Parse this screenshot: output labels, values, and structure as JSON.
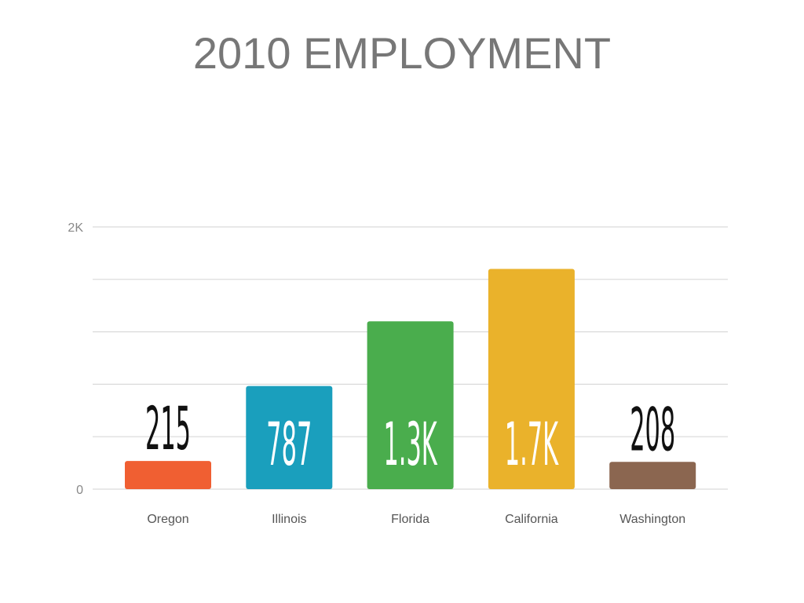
{
  "chart_data": {
    "type": "bar",
    "title": "2010 EMPLOYMENT",
    "categories": [
      "Oregon",
      "Illinois",
      "Florida",
      "California",
      "Washington"
    ],
    "values": [
      215,
      787,
      1280,
      1680,
      208
    ],
    "value_labels": [
      "215",
      "787",
      "1.3K",
      "1.7K",
      "208"
    ],
    "colors": [
      "#f05f32",
      "#1a9fbd",
      "#4aad4d",
      "#eab22b",
      "#8b6650"
    ],
    "ylim": [
      0,
      2000
    ],
    "yticks": [
      0,
      {
        "value": 2000,
        "label": "2K"
      }
    ],
    "gridlines": [
      400,
      800,
      1200,
      1600
    ],
    "grid": true
  }
}
